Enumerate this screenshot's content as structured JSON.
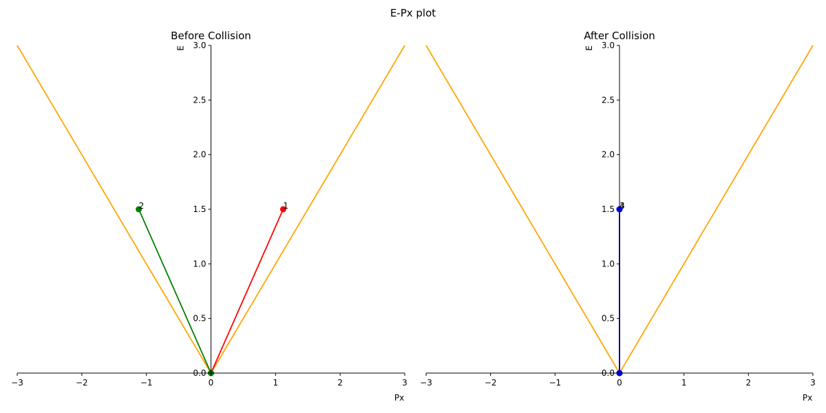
{
  "suptitle": "E-Px plot",
  "chart_data": [
    {
      "type": "line",
      "title": "Before Collision",
      "xlabel": "Px",
      "ylabel": "E",
      "xlim": [
        -3,
        3
      ],
      "ylim": [
        0,
        3
      ],
      "xticks": [
        -3,
        -2,
        -1,
        0,
        1,
        2,
        3
      ],
      "xtick_labels": [
        "−3",
        "−2",
        "−1",
        "0",
        "1",
        "2",
        "3"
      ],
      "yticks": [
        0,
        0.5,
        1,
        1.5,
        2,
        2.5,
        3
      ],
      "ytick_labels": [
        "0.0",
        "0.5",
        "1.0",
        "1.5",
        "2.0",
        "2.5",
        "3.0"
      ],
      "grid": false,
      "light_cone": {
        "color": "#ffa500",
        "x": [
          -3,
          0,
          3
        ],
        "y": [
          3,
          0,
          3
        ]
      },
      "vectors": [
        {
          "label": "1",
          "color": "#ff0000",
          "from": [
            0,
            0
          ],
          "to": [
            1.118,
            1.5
          ]
        },
        {
          "label": "2",
          "color": "#008000",
          "from": [
            0,
            0
          ],
          "to": [
            -1.118,
            1.5
          ]
        }
      ]
    },
    {
      "type": "line",
      "title": "After Collision",
      "xlabel": "Px",
      "ylabel": "E",
      "xlim": [
        -3,
        3
      ],
      "ylim": [
        0,
        3
      ],
      "xticks": [
        -3,
        -2,
        -1,
        0,
        1,
        2,
        3
      ],
      "xtick_labels": [
        "−3",
        "−2",
        "−1",
        "0",
        "1",
        "2",
        "3"
      ],
      "yticks": [
        0,
        0.5,
        1,
        1.5,
        2,
        2.5,
        3
      ],
      "ytick_labels": [
        "0.0",
        "0.5",
        "1.0",
        "1.5",
        "2.0",
        "2.5",
        "3.0"
      ],
      "grid": false,
      "light_cone": {
        "color": "#ffa500",
        "x": [
          -3,
          0,
          3
        ],
        "y": [
          3,
          0,
          3
        ]
      },
      "vectors": [
        {
          "label": "3",
          "color": "#0000ff",
          "from": [
            0,
            0
          ],
          "to": [
            0,
            1.5
          ]
        },
        {
          "label": "4",
          "color": "#0000ff",
          "from": [
            0,
            0
          ],
          "to": [
            0,
            1.5
          ]
        }
      ]
    }
  ]
}
